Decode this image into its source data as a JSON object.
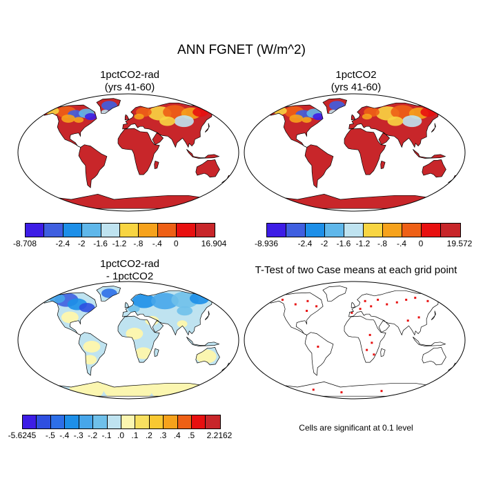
{
  "title": "ANN FGNET (W/m^2)",
  "panels": {
    "p1": {
      "line1": "1pctCO2-rad",
      "line2": "(yrs 41-60)"
    },
    "p2": {
      "line1": "1pctCO2",
      "line2": "(yrs 41-60)"
    },
    "p3": {
      "line1": "1pctCO2-rad",
      "line2": "- 1pctCO2"
    },
    "p4": {
      "title": "T-Test of two Case means at each grid point"
    }
  },
  "colorbars": {
    "cb1": {
      "colors": [
        "#3d1de6",
        "#3f5fe0",
        "#1d8fe8",
        "#5fb7ea",
        "#bfe3f0",
        "#f8d542",
        "#f6a21c",
        "#ee6016",
        "#e81010",
        "#c8262a"
      ],
      "labels": [
        "-8.708",
        "-2.4",
        "-2",
        "-1.6",
        "-1.2",
        "-.8",
        "-.4",
        "0",
        "16.904"
      ]
    },
    "cb2": {
      "colors": [
        "#3d1de6",
        "#3f5fe0",
        "#1d8fe8",
        "#5fb7ea",
        "#bfe3f0",
        "#f8d542",
        "#f6a21c",
        "#ee6016",
        "#e81010",
        "#c8262a"
      ],
      "labels": [
        "-8.936",
        "-2.4",
        "-2",
        "-1.6",
        "-1.2",
        "-.8",
        "-.4",
        "0",
        "19.572"
      ]
    },
    "cb3": {
      "colors": [
        "#3d1de6",
        "#2f4fe0",
        "#2d6fe8",
        "#1d8fe8",
        "#47a6ea",
        "#6fc0ea",
        "#bfe3f0",
        "#fbf6b0",
        "#f8e060",
        "#f8c832",
        "#f6a21c",
        "#ee6016",
        "#e81010",
        "#c8262a"
      ],
      "labels": [
        "-5.6245",
        "-.5",
        "-.4",
        "-.3",
        "-.2",
        "-.1",
        ".0",
        ".1",
        ".2",
        ".3",
        ".4",
        ".5",
        "2.2162"
      ]
    }
  },
  "significance_note": "Cells are significant at 0.1 level",
  "map_colors": {
    "ocean": "#ffffff",
    "coast": "#000000",
    "land_p1": "#c8262a",
    "land_p2": "#c8262a",
    "land_p3": "#bfe3f0",
    "land_p3_alt": "#fbf6b0",
    "sig": "#e81010"
  }
}
